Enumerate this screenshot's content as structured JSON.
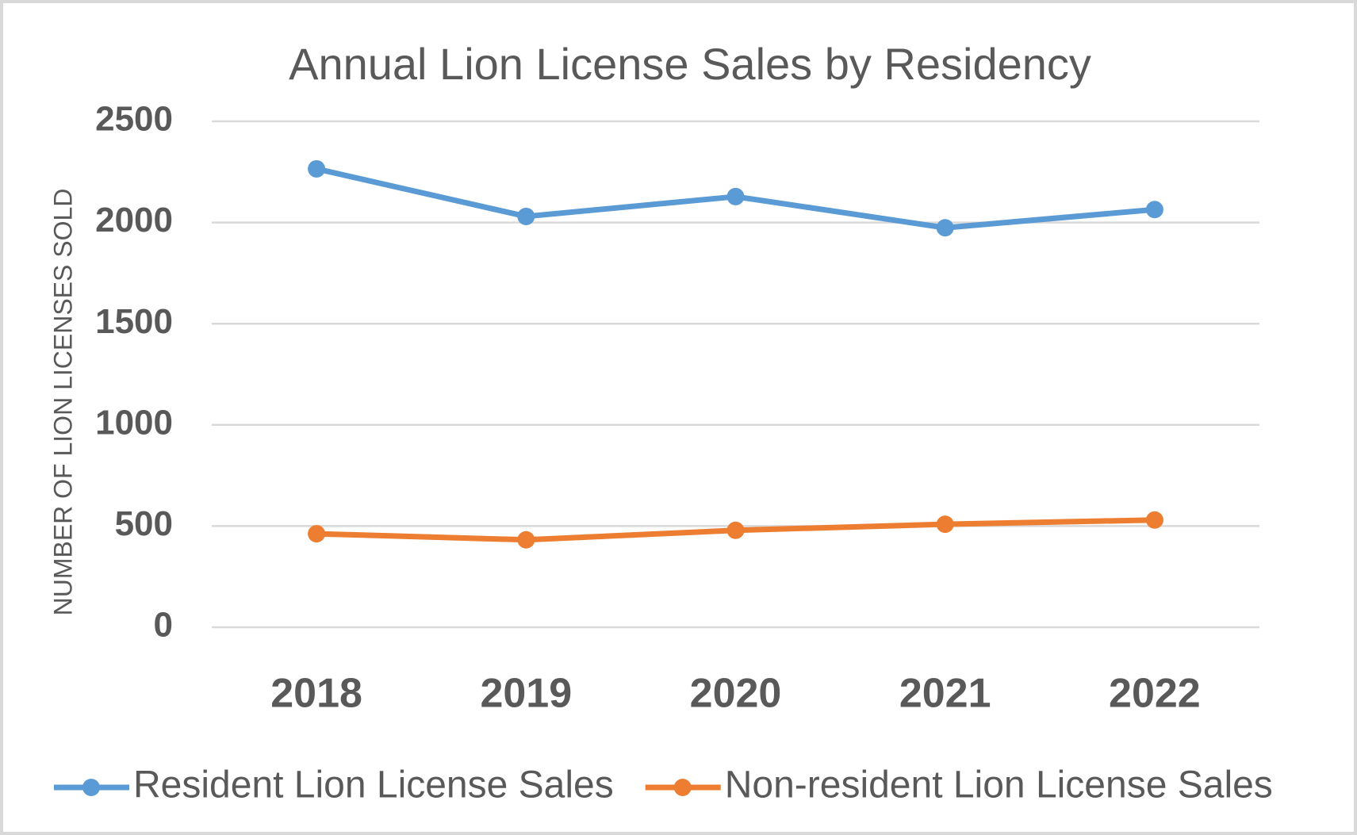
{
  "chart_data": {
    "type": "line",
    "title": "Annual Lion License Sales by Residency",
    "y_label": "NUMBER OF LION LICENSES SOLD",
    "categories": [
      "2018",
      "2019",
      "2020",
      "2021",
      "2022"
    ],
    "series": [
      {
        "name": "Resident Lion License Sales",
        "color": "#5b9bd5",
        "values": [
          2265,
          2030,
          2128,
          1974,
          2064
        ]
      },
      {
        "name": "Non-resident Lion License Sales",
        "color": "#ed7d31",
        "values": [
          462,
          432,
          479,
          509,
          530
        ]
      }
    ],
    "ylim": [
      0,
      2500
    ],
    "yticks": [
      0,
      500,
      1000,
      1500,
      2000,
      2500
    ],
    "grid": true,
    "legend": "bottom"
  }
}
